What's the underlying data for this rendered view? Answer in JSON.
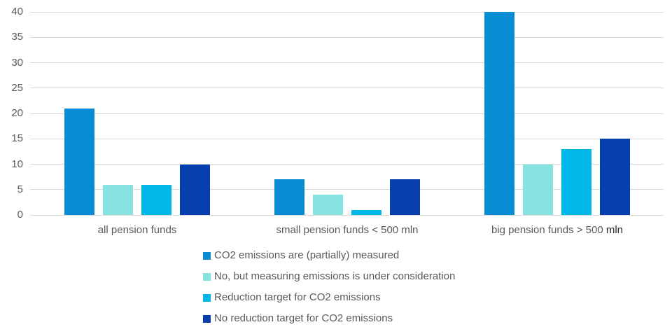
{
  "chart_data": {
    "type": "bar",
    "title": "",
    "xlabel": "",
    "ylabel": "",
    "ylim": [
      0,
      40
    ],
    "yticks": [
      0,
      5,
      10,
      15,
      20,
      25,
      30,
      35,
      40
    ],
    "grid": true,
    "legend_position": "bottom-left",
    "categories": [
      {
        "label": "all pension funds",
        "dark_suffix": ""
      },
      {
        "label": "small pension funds < 500 mln",
        "dark_suffix": ""
      },
      {
        "label": "big pension funds > 500 ",
        "dark_suffix": "mln"
      }
    ],
    "series": [
      {
        "name": "CO2 emissions are (partially) measured",
        "color": "#088cd4",
        "values": [
          21,
          7,
          40
        ]
      },
      {
        "name": "No, but measuring emissions is under consideration",
        "color": "#86e2de",
        "values": [
          6,
          4,
          10
        ]
      },
      {
        "name": "Reduction target for CO2 emissions",
        "color": "#00b7ea",
        "values": [
          6,
          1,
          13
        ]
      },
      {
        "name": "No reduction target for CO2 emissions",
        "color": "#073fae",
        "values": [
          10,
          7,
          15
        ]
      }
    ]
  },
  "styles": {
    "background": "#ffffff",
    "grid_color": "#d9d9d9",
    "tick_label_color": "#595959",
    "category_label_color": "#595959",
    "category_dark_color": "#262626",
    "legend_text_color": "#595959"
  }
}
